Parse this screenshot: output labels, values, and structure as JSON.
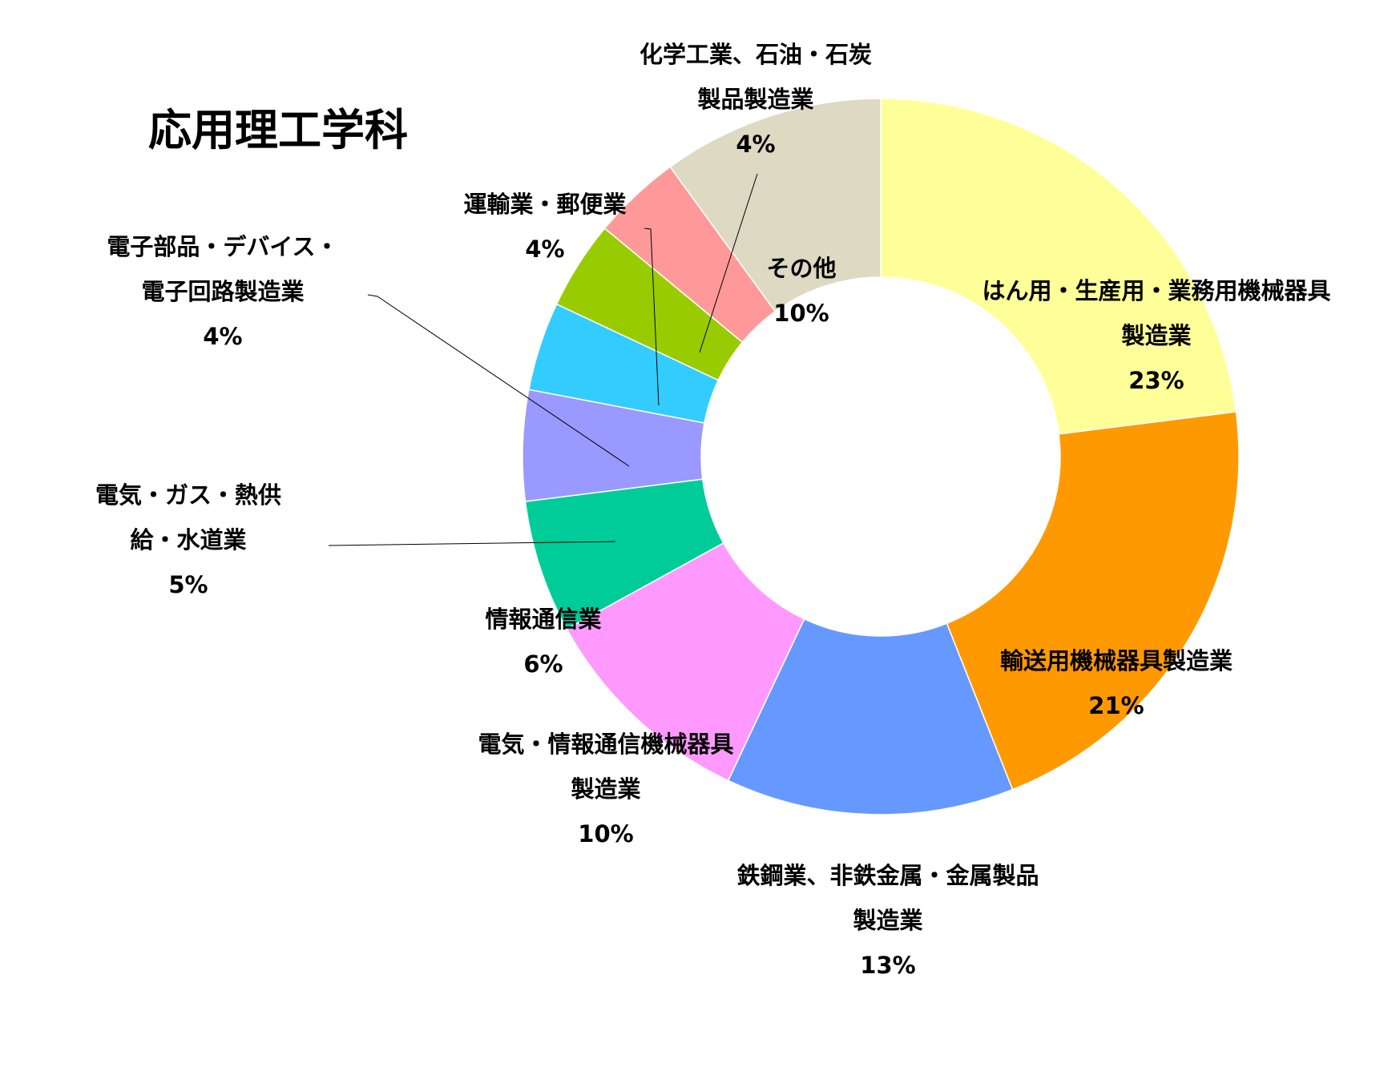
{
  "chart_data": {
    "type": "pie",
    "variant": "donut",
    "title": "応用理工学科",
    "legend": "none",
    "series": [
      {
        "name": "はん用・生産用・業務用機械器具製造業",
        "label_lines": [
          "はん用・生産用・業務用機械器具",
          "製造業"
        ],
        "value": 23,
        "value_label": "23%",
        "color": "#FFFF99"
      },
      {
        "name": "輸送用機械器具製造業",
        "label_lines": [
          "輸送用機械器具製造業"
        ],
        "value": 21,
        "value_label": "21%",
        "color": "#FF9900"
      },
      {
        "name": "鉄鋼業、非鉄金属・金属製品製造業",
        "label_lines": [
          "鉄鋼業、非鉄金属・金属製品",
          "製造業"
        ],
        "value": 13,
        "value_label": "13%",
        "color": "#6699FF"
      },
      {
        "name": "電気・情報通信機械器具製造業",
        "label_lines": [
          "電気・情報通信機械器具",
          "製造業"
        ],
        "value": 10,
        "value_label": "10%",
        "color": "#FF99FF"
      },
      {
        "name": "情報通信業",
        "label_lines": [
          "情報通信業"
        ],
        "value": 6,
        "value_label": "6%",
        "color": "#00CC99"
      },
      {
        "name": "電気・ガス・熱供給・水道業",
        "label_lines": [
          "電気・ガス・熱供",
          "給・水道業"
        ],
        "value": 5,
        "value_label": "5%",
        "color": "#9999FF"
      },
      {
        "name": "電子部品・デバイス・電子回路製造業",
        "label_lines": [
          "電子部品・デバイス・",
          "電子回路製造業"
        ],
        "value": 4,
        "value_label": "4%",
        "color": "#33CCFF"
      },
      {
        "name": "運輸業・郵便業",
        "label_lines": [
          "運輸業・郵便業"
        ],
        "value": 4,
        "value_label": "4%",
        "color": "#99CC00"
      },
      {
        "name": "化学工業、石油・石炭製品製造業",
        "label_lines": [
          "化学工業、石油・石炭",
          "製品製造業"
        ],
        "value": 4,
        "value_label": "4%",
        "color": "#FF9999"
      },
      {
        "name": "その他",
        "label_lines": [
          "その他"
        ],
        "value": 10,
        "value_label": "10%",
        "color": "#DDD9C3"
      }
    ]
  }
}
